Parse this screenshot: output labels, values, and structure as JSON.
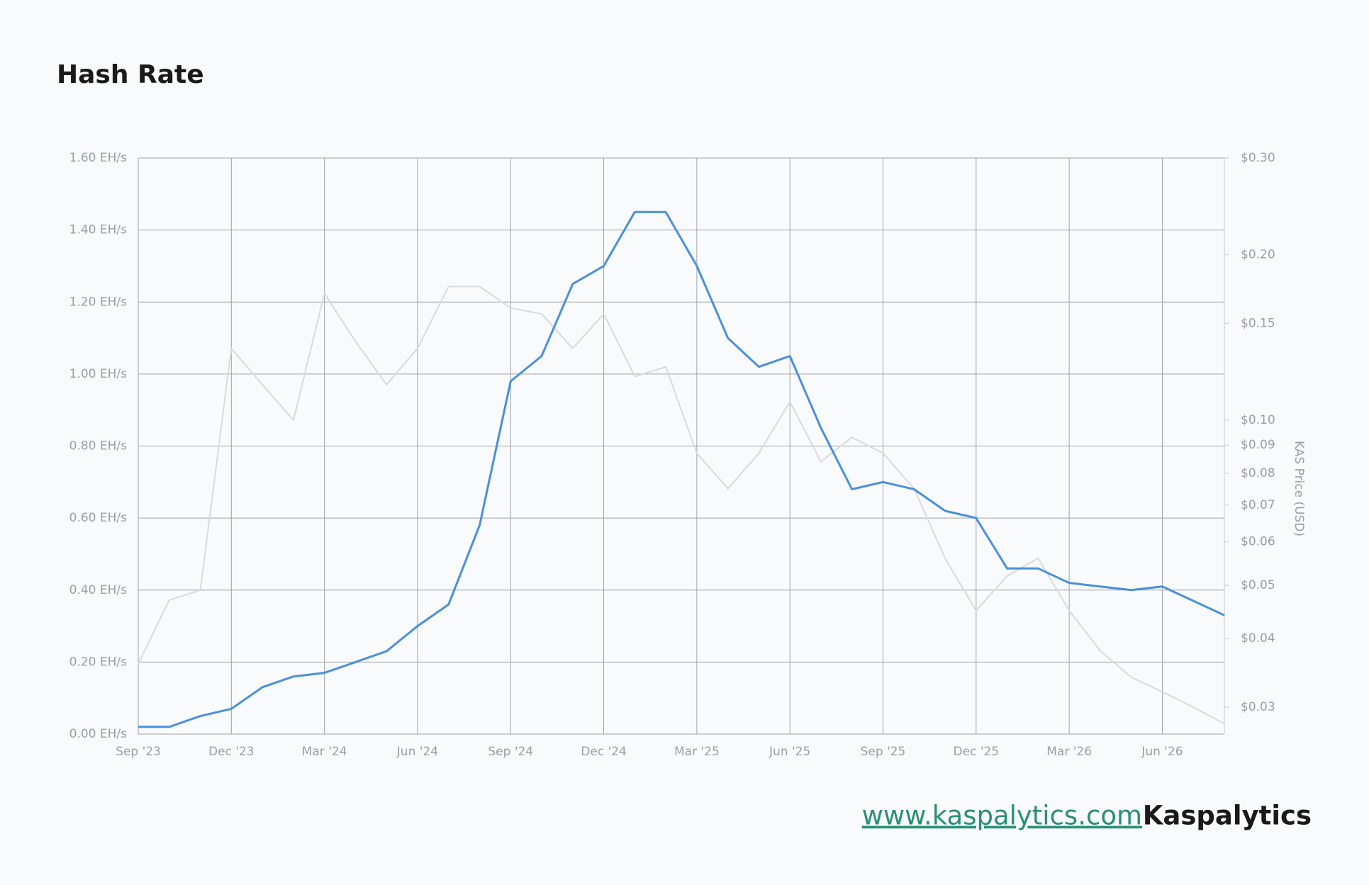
{
  "chart_data": {
    "type": "line",
    "title": "Hash Rate",
    "categories": [
      "Sep '23",
      null,
      null,
      "Dec '23",
      null,
      null,
      "Mar '24",
      null,
      null,
      "Jun '24",
      null,
      null,
      "Sep '24",
      null,
      null,
      "Dec '24",
      null,
      null,
      "Mar '25",
      null,
      null,
      "Jun '25",
      null,
      null,
      "Sep '25",
      null,
      null,
      "Dec '25",
      null,
      null,
      "Mar '26",
      null,
      null,
      "Jun '26",
      null,
      null
    ],
    "series": [
      {
        "name": "KAS Price (USD)",
        "axis": "y2",
        "color": "#d8dade",
        "values": [
          0.036,
          0.047,
          0.049,
          0.135,
          0.116,
          0.1,
          0.17,
          0.139,
          0.116,
          0.135,
          0.175,
          0.175,
          0.16,
          0.156,
          0.135,
          0.156,
          0.12,
          0.125,
          0.087,
          0.075,
          0.087,
          0.108,
          0.084,
          0.093,
          0.087,
          0.075,
          0.056,
          0.045,
          0.052,
          0.056,
          0.045,
          0.038,
          0.034,
          0.032,
          0.03,
          0.028
        ]
      },
      {
        "name": "Hash Rate",
        "color": "#4a90dc",
        "values": [
          0.02,
          0.02,
          0.05,
          0.07,
          0.13,
          0.16,
          0.17,
          0.2,
          0.23,
          0.3,
          0.36,
          0.58,
          0.98,
          1.05,
          1.25,
          1.3,
          1.45,
          1.45,
          1.3,
          1.1,
          1.02,
          1.05,
          0.85,
          0.68,
          0.7,
          0.68,
          0.62,
          0.6,
          0.46,
          0.46,
          0.42,
          0.41,
          0.4,
          0.41,
          0.37,
          0.33
        ]
      }
    ],
    "ylim": [
      0,
      1.6
    ],
    "yticks": [
      {
        "value": 0,
        "label": "0.00 EH/s"
      },
      {
        "value": 0.2,
        "label": "0.20 EH/s"
      },
      {
        "value": 0.4,
        "label": "0.40 EH/s"
      },
      {
        "value": 0.6,
        "label": "0.60 EH/s"
      },
      {
        "value": 0.8,
        "label": "0.80 EH/s"
      },
      {
        "value": 1.0,
        "label": "1.00 EH/s"
      },
      {
        "value": 1.2,
        "label": "1.20 EH/s"
      },
      {
        "value": 1.4,
        "label": "1.40 EH/s"
      },
      {
        "value": 1.6,
        "label": "1.60 EH/s"
      }
    ],
    "y2lim": [
      0.0268,
      0.3
    ],
    "y2scale": "log",
    "y2label": "KAS Price (USD)",
    "y2ticks": [
      {
        "value": 0.03,
        "label": "$0.03"
      },
      {
        "value": 0.04,
        "label": "$0.04"
      },
      {
        "value": 0.05,
        "label": "$0.05"
      },
      {
        "value": 0.06,
        "label": "$0.06"
      },
      {
        "value": 0.07,
        "label": "$0.07"
      },
      {
        "value": 0.08,
        "label": "$0.08"
      },
      {
        "value": 0.09,
        "label": "$0.09"
      },
      {
        "value": 0.1,
        "label": "$0.10"
      },
      {
        "value": 0.15,
        "label": "$0.15"
      },
      {
        "value": 0.2,
        "label": "$0.20"
      },
      {
        "value": 0.3,
        "label": "$0.30"
      }
    ],
    "grid": true
  },
  "footer": {
    "link": "www.kaspalytics.com",
    "brand": "Kaspalytics"
  }
}
